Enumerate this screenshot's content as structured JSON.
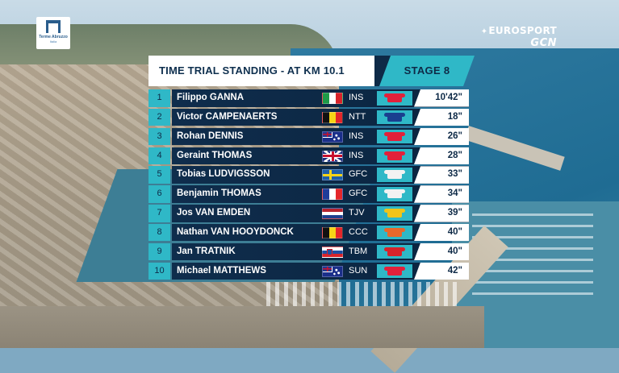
{
  "logos": {
    "city_name": "Terme Abruzzo",
    "city_sub": "Italia",
    "broadcaster": "EUROSPORT",
    "channel": "GCN"
  },
  "board": {
    "title": "TIME TRIAL STANDING - AT KM 10.1",
    "stage": "STAGE 8",
    "rows": [
      {
        "pos": "1",
        "name": "Filippo GANNA",
        "flag": "italy-flag",
        "team": "INS",
        "jersey": "#e2203a",
        "time": "10'42\""
      },
      {
        "pos": "2",
        "name": "Victor CAMPENAERTS",
        "flag": "belgium-flag",
        "team": "NTT",
        "jersey": "#1a3f8f",
        "time": "18\""
      },
      {
        "pos": "3",
        "name": "Rohan DENNIS",
        "flag": "australia-flag",
        "team": "INS",
        "jersey": "#e2203a",
        "time": "26\""
      },
      {
        "pos": "4",
        "name": "Geraint THOMAS",
        "flag": "uk-flag",
        "team": "INS",
        "jersey": "#e2203a",
        "time": "28\""
      },
      {
        "pos": "5",
        "name": "Tobias LUDVIGSSON",
        "flag": "sweden-flag",
        "team": "GFC",
        "jersey": "#f2f2f2",
        "time": "33\""
      },
      {
        "pos": "6",
        "name": "Benjamin THOMAS",
        "flag": "france-flag",
        "team": "GFC",
        "jersey": "#f2f2f2",
        "time": "34\""
      },
      {
        "pos": "7",
        "name": "Jos VAN EMDEN",
        "flag": "netherlands-flag",
        "team": "TJV",
        "jersey": "#f0c419",
        "time": "39\""
      },
      {
        "pos": "8",
        "name": "Nathan VAN HOOYDONCK",
        "flag": "belgium-flag",
        "team": "CCC",
        "jersey": "#e8682a",
        "time": "40\""
      },
      {
        "pos": "9",
        "name": "Jan TRATNIK",
        "flag": "slovenia-flag",
        "team": "TBM",
        "jersey": "#d8232a",
        "time": "40\""
      },
      {
        "pos": "10",
        "name": "Michael MATTHEWS",
        "flag": "australia-flag",
        "team": "SUN",
        "jersey": "#e2203a",
        "time": "42\""
      }
    ]
  }
}
